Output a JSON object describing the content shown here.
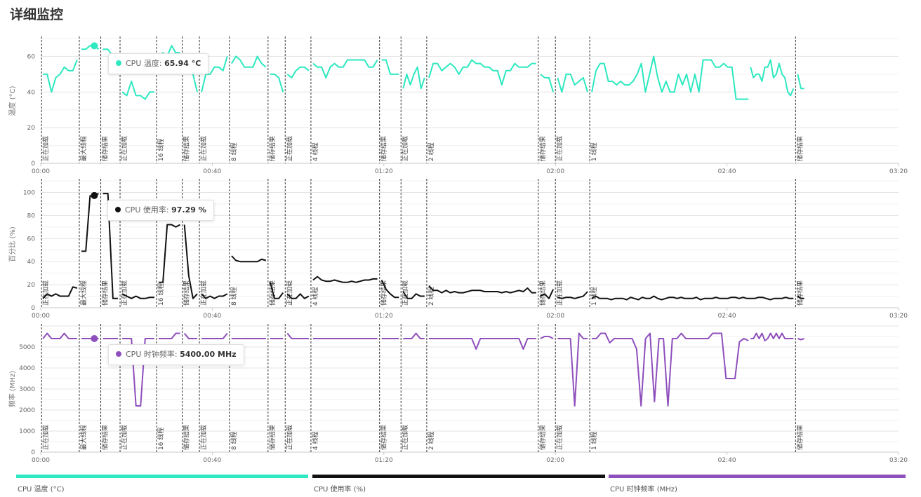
{
  "page": {
    "title": "详细监控"
  },
  "colors": {
    "temp": "#2de8c0",
    "usage": "#111111",
    "clock": "#8e4fbd"
  },
  "tooltips": [
    {
      "label": "CPU 温度",
      "value": "65.94 °C"
    },
    {
      "label": "CPU 使用率",
      "value": "97.29 %"
    },
    {
      "label": "CPU 时钟频率",
      "value": "5400.00 MHz"
    }
  ],
  "legend": [
    {
      "label": "CPU 温度 (°C)",
      "color": "#2de8c0"
    },
    {
      "label": "CPU 使用率 (%)",
      "color": "#111111"
    },
    {
      "label": "CPU 时钟频率 (MHz)",
      "color": "#8e4fbd"
    }
  ],
  "chart_data": [
    {
      "type": "line",
      "ylabel": "温度 (°C)",
      "ylim": [
        0,
        70
      ],
      "yticks": [
        0,
        20,
        40,
        60
      ],
      "xlim": [
        "00:00",
        "03:20"
      ],
      "xticks": [
        "00:00",
        "00:40",
        "01:20",
        "02:00",
        "02:40",
        "03:20"
      ],
      "grid": true,
      "color": "#2de8c0",
      "highlight": {
        "x": "00:12.5",
        "y": 65.94
      },
      "phase_markers": [
        {
          "x": "00:00.2",
          "label": "正在加载"
        },
        {
          "x": "00:09",
          "label": "最大线程"
        },
        {
          "x": "00:14",
          "label": "储存结果"
        },
        {
          "x": "00:18.5",
          "label": "正在加载"
        },
        {
          "x": "00:27",
          "label": "16 线程"
        },
        {
          "x": "00:33",
          "label": "储存结果"
        },
        {
          "x": "00:37",
          "label": "正在加载"
        },
        {
          "x": "00:44",
          "label": "8 线程"
        },
        {
          "x": "00:53",
          "label": "储存结果"
        },
        {
          "x": "00:57",
          "label": "正在加载"
        },
        {
          "x": "01:03",
          "label": "4 线程"
        },
        {
          "x": "01:19",
          "label": "储存结果"
        },
        {
          "x": "01:24",
          "label": "正在加载"
        },
        {
          "x": "01:30",
          "label": "2 线程"
        },
        {
          "x": "01:56",
          "label": "储存结果"
        },
        {
          "x": "02:00",
          "label": "正在加载"
        },
        {
          "x": "02:08",
          "label": "1 线程"
        },
        {
          "x": "02:56",
          "label": "储存结果"
        }
      ],
      "segments": [
        {
          "x0": "00:00.5",
          "x1": "00:08.5",
          "y": [
            50,
            50,
            40,
            48,
            50,
            54,
            52,
            52,
            58
          ]
        },
        {
          "x0": "00:09.5",
          "x1": "00:13.5",
          "y": [
            64,
            64,
            66,
            66,
            64
          ]
        },
        {
          "x0": "00:14.5",
          "x1": "00:18",
          "y": [
            64,
            64,
            60,
            56
          ]
        },
        {
          "x0": "00:19",
          "x1": "00:26.5",
          "y": [
            40,
            38,
            46,
            38,
            38,
            36,
            40,
            40
          ]
        },
        {
          "x0": "00:27.5",
          "x1": "00:32.5",
          "y": [
            60,
            62,
            60,
            66,
            62,
            62
          ]
        },
        {
          "x0": "00:33.5",
          "x1": "00:36.5",
          "y": [
            58,
            56,
            50,
            40
          ]
        },
        {
          "x0": "00:37.5",
          "x1": "00:43.5",
          "y": [
            40,
            50,
            50,
            54,
            54,
            52,
            60
          ]
        },
        {
          "x0": "00:44.5",
          "x1": "00:52.5",
          "y": [
            56,
            60,
            58,
            54,
            54,
            54,
            60,
            56,
            54
          ]
        },
        {
          "x0": "00:53.5",
          "x1": "00:56.5",
          "y": [
            50,
            50,
            48,
            40
          ]
        },
        {
          "x0": "00:57.5",
          "x1": "01:02.5",
          "y": [
            50,
            48,
            52,
            54,
            54,
            52
          ]
        },
        {
          "x0": "01:03.5",
          "x1": "01:18.5",
          "y": [
            56,
            54,
            54,
            48,
            54,
            56,
            54,
            54,
            58,
            58,
            58,
            58,
            58,
            54,
            54,
            58
          ]
        },
        {
          "x0": "01:19.5",
          "x1": "01:23.5",
          "y": [
            58,
            58,
            50,
            50,
            50
          ]
        },
        {
          "x0": "01:24.5",
          "x1": "01:29.5",
          "y": [
            42,
            50,
            44,
            50,
            54,
            42,
            48
          ]
        },
        {
          "x0": "01:30.5",
          "x1": "01:55.5",
          "y": [
            48,
            56,
            56,
            52,
            54,
            56,
            54,
            50,
            54,
            54,
            58,
            56,
            56,
            54,
            54,
            52,
            52,
            44,
            52,
            52,
            56,
            54,
            54,
            54,
            56,
            56
          ]
        },
        {
          "x0": "01:56.5",
          "x1": "01:59.5",
          "y": [
            50,
            48,
            48,
            40
          ]
        },
        {
          "x0": "02:00.5",
          "x1": "02:07.5",
          "y": [
            48,
            40,
            50,
            50,
            44,
            46,
            48,
            40
          ]
        },
        {
          "x0": "02:08.5",
          "x1": "02:45",
          "y": [
            40,
            52,
            56,
            56,
            46,
            46,
            44,
            46,
            44,
            44,
            46,
            50,
            56,
            40,
            50,
            60,
            48,
            40,
            46,
            40,
            40,
            50,
            44,
            50,
            40,
            50,
            40,
            58,
            58,
            58,
            54,
            54,
            56,
            54,
            54,
            36,
            36,
            36,
            36
          ]
        },
        {
          "x0": "02:45.5",
          "x1": "02:55.5",
          "y": [
            54,
            48,
            50,
            50,
            46,
            54,
            54,
            58,
            48,
            50,
            56,
            50,
            48,
            40,
            38,
            42
          ]
        },
        {
          "x0": "02:56.5",
          "x1": "02:58",
          "y": [
            50,
            42,
            42
          ]
        }
      ]
    },
    {
      "type": "line",
      "ylabel": "百分比 (%)",
      "ylim": [
        0,
        110
      ],
      "yticks": [
        0,
        20,
        40,
        60,
        80,
        100
      ],
      "xlim": [
        "00:00",
        "03:20"
      ],
      "xticks": [
        "00:00",
        "00:40",
        "01:20",
        "02:00",
        "02:40",
        "03:20"
      ],
      "grid": true,
      "color": "#111111",
      "highlight": {
        "x": "00:12.5",
        "y": 97.29
      },
      "phase_markers": "same",
      "segments": [
        {
          "x0": "00:00.5",
          "x1": "00:08.5",
          "y": [
            8,
            12,
            10,
            12,
            10,
            10,
            10,
            18,
            17
          ]
        },
        {
          "x0": "00:09.5",
          "x1": "00:13.5",
          "y": [
            49,
            49,
            97,
            97,
            99
          ]
        },
        {
          "x0": "00:14.5",
          "x1": "00:18",
          "y": [
            99,
            99,
            8,
            8
          ]
        },
        {
          "x0": "00:19",
          "x1": "00:26.5",
          "y": [
            12,
            10,
            8,
            10,
            8,
            8,
            9,
            9
          ]
        },
        {
          "x0": "00:27.5",
          "x1": "00:32.5",
          "y": [
            22,
            22,
            72,
            72,
            70,
            72
          ]
        },
        {
          "x0": "00:33.5",
          "x1": "00:36.5",
          "y": [
            72,
            28,
            8,
            12
          ]
        },
        {
          "x0": "00:37.5",
          "x1": "00:43.5",
          "y": [
            12,
            8,
            10,
            8,
            10,
            10,
            12
          ]
        },
        {
          "x0": "00:44.5",
          "x1": "00:52.5",
          "y": [
            45,
            41,
            40,
            40,
            40,
            40,
            40,
            42,
            41
          ]
        },
        {
          "x0": "00:53.5",
          "x1": "00:56.5",
          "y": [
            22,
            8,
            8,
            13
          ]
        },
        {
          "x0": "00:57.5",
          "x1": "01:02.5",
          "y": [
            12,
            8,
            8,
            12,
            8,
            10
          ]
        },
        {
          "x0": "01:03.5",
          "x1": "01:18.5",
          "y": [
            24,
            27,
            24,
            23,
            23,
            24,
            23,
            22,
            22,
            23,
            22,
            23,
            24,
            24,
            25,
            25
          ]
        },
        {
          "x0": "01:19.5",
          "x1": "01:23.5",
          "y": [
            24,
            16,
            12,
            9,
            9
          ]
        },
        {
          "x0": "01:24.5",
          "x1": "01:29.5",
          "y": [
            14,
            8,
            8,
            12,
            10,
            10
          ]
        },
        {
          "x0": "01:30.5",
          "x1": "01:55.5",
          "y": [
            19,
            15,
            15,
            13,
            15,
            13,
            14,
            13,
            13,
            14,
            15,
            15,
            15,
            14,
            14,
            14,
            14,
            13,
            14,
            13,
            14,
            15,
            14,
            17,
            13,
            13
          ]
        },
        {
          "x0": "01:56.5",
          "x1": "01:59.5",
          "y": [
            10,
            12,
            8,
            16
          ]
        },
        {
          "x0": "02:00.5",
          "x1": "02:07.5",
          "y": [
            9,
            8,
            9,
            9,
            8,
            9,
            10,
            14
          ]
        },
        {
          "x0": "02:08.5",
          "x1": "02:55.5",
          "y": [
            8,
            10,
            8,
            8,
            8,
            7,
            8,
            8,
            8,
            7,
            9,
            8,
            7,
            9,
            8,
            8,
            10,
            8,
            7,
            8,
            9,
            9,
            8,
            9,
            8,
            8,
            8,
            9,
            7,
            8,
            8,
            8,
            9,
            8,
            8,
            8,
            9,
            9,
            8,
            9,
            8,
            8,
            8,
            9,
            9,
            8,
            7,
            8,
            8,
            8,
            9,
            8,
            8
          ]
        },
        {
          "x0": "02:56.5",
          "x1": "02:58",
          "y": [
            10,
            8,
            8
          ]
        }
      ]
    },
    {
      "type": "line",
      "ylabel": "频率 (MHz)",
      "ylim": [
        0,
        6000
      ],
      "yticks": [
        0,
        1000,
        2000,
        3000,
        4000,
        5000
      ],
      "xlim": [
        "00:00",
        "03:20"
      ],
      "xticks": [
        "00:00",
        "00:40",
        "01:20",
        "02:00",
        "02:40",
        "03:20"
      ],
      "grid": true,
      "color": "#8e4fbd",
      "highlight": {
        "x": "00:12.5",
        "y": 5400
      },
      "phase_markers": "same",
      "segments": [
        {
          "x0": "00:00.5",
          "x1": "00:08.5",
          "y": [
            5400,
            5650,
            5400,
            5400,
            5400,
            5650,
            5400,
            5400,
            5400
          ]
        },
        {
          "x0": "00:09.5",
          "x1": "00:13.5",
          "y": [
            5400,
            5400,
            5400,
            5400,
            5400
          ]
        },
        {
          "x0": "00:14.5",
          "x1": "00:18",
          "y": [
            5400,
            5400,
            5400,
            5400
          ]
        },
        {
          "x0": "00:19",
          "x1": "00:26.5",
          "y": [
            5400,
            5400,
            5400,
            2200,
            2200,
            5400,
            5400,
            5400
          ]
        },
        {
          "x0": "00:27.5",
          "x1": "00:32.5",
          "y": [
            5400,
            5400,
            5400,
            5400,
            5650,
            5650
          ]
        },
        {
          "x0": "00:33.5",
          "x1": "00:36.5",
          "y": [
            5650,
            5400,
            5400,
            5400
          ]
        },
        {
          "x0": "00:37.5",
          "x1": "00:43.5",
          "y": [
            5400,
            5400,
            5400,
            5400,
            5400,
            5400,
            5650
          ]
        },
        {
          "x0": "00:44.5",
          "x1": "00:52.5",
          "y": [
            5400,
            5400,
            5400,
            5400,
            5400,
            5400,
            5400,
            5400,
            5400
          ]
        },
        {
          "x0": "00:53.5",
          "x1": "00:56.5",
          "y": [
            5400,
            5400,
            5400,
            5400
          ]
        },
        {
          "x0": "00:57.5",
          "x1": "01:02.5",
          "y": [
            5650,
            5400,
            5400,
            5400,
            5400,
            5400
          ]
        },
        {
          "x0": "01:03.5",
          "x1": "01:18.5",
          "y": [
            5400,
            5400,
            5400,
            5400,
            5400,
            5400,
            5400,
            5400,
            5400,
            5400,
            5400,
            5400,
            5400,
            5400,
            5400,
            5400
          ]
        },
        {
          "x0": "01:19.5",
          "x1": "01:23.5",
          "y": [
            5400,
            5400,
            5400,
            5400,
            5400
          ]
        },
        {
          "x0": "01:24.5",
          "x1": "01:29.5",
          "y": [
            5400,
            5400,
            5400,
            5650,
            5400,
            5400
          ]
        },
        {
          "x0": "01:30.5",
          "x1": "01:55.5",
          "y": [
            5400,
            5400,
            5400,
            5400,
            5400,
            5400,
            5400,
            5400,
            5400,
            5400,
            5400,
            4900,
            5400,
            5400,
            5400,
            5400,
            5400,
            5400,
            5400,
            5400,
            5400,
            5400,
            4900,
            5400,
            5400,
            5400
          ]
        },
        {
          "x0": "01:56.5",
          "x1": "01:59.5",
          "y": [
            5400,
            5500,
            5500,
            5400
          ]
        },
        {
          "x0": "02:00.5",
          "x1": "02:07.5",
          "y": [
            5400,
            5400,
            5400,
            5400,
            2200,
            5650,
            5400,
            5400
          ]
        },
        {
          "x0": "02:08.5",
          "x1": "02:45",
          "y": [
            5400,
            5400,
            5650,
            5650,
            5200,
            5400,
            5400,
            5400,
            5400,
            5400,
            4900,
            2200,
            5400,
            5650,
            2400,
            5400,
            5400,
            2200,
            5400,
            5400,
            5650,
            5400,
            5400,
            5400,
            5400,
            5400,
            5400,
            5650,
            5650,
            5650,
            3500,
            3500,
            3500,
            5250,
            5400,
            5300
          ]
        },
        {
          "x0": "02:45.5",
          "x1": "02:55.5",
          "y": [
            5400,
            5400,
            5650,
            5400,
            5650,
            5300,
            5400,
            5650,
            5400,
            5650,
            5400,
            5650,
            5400,
            5400,
            5400,
            5400
          ]
        },
        {
          "x0": "02:56.5",
          "x1": "02:58",
          "y": [
            5400,
            5350,
            5400
          ]
        }
      ]
    }
  ]
}
